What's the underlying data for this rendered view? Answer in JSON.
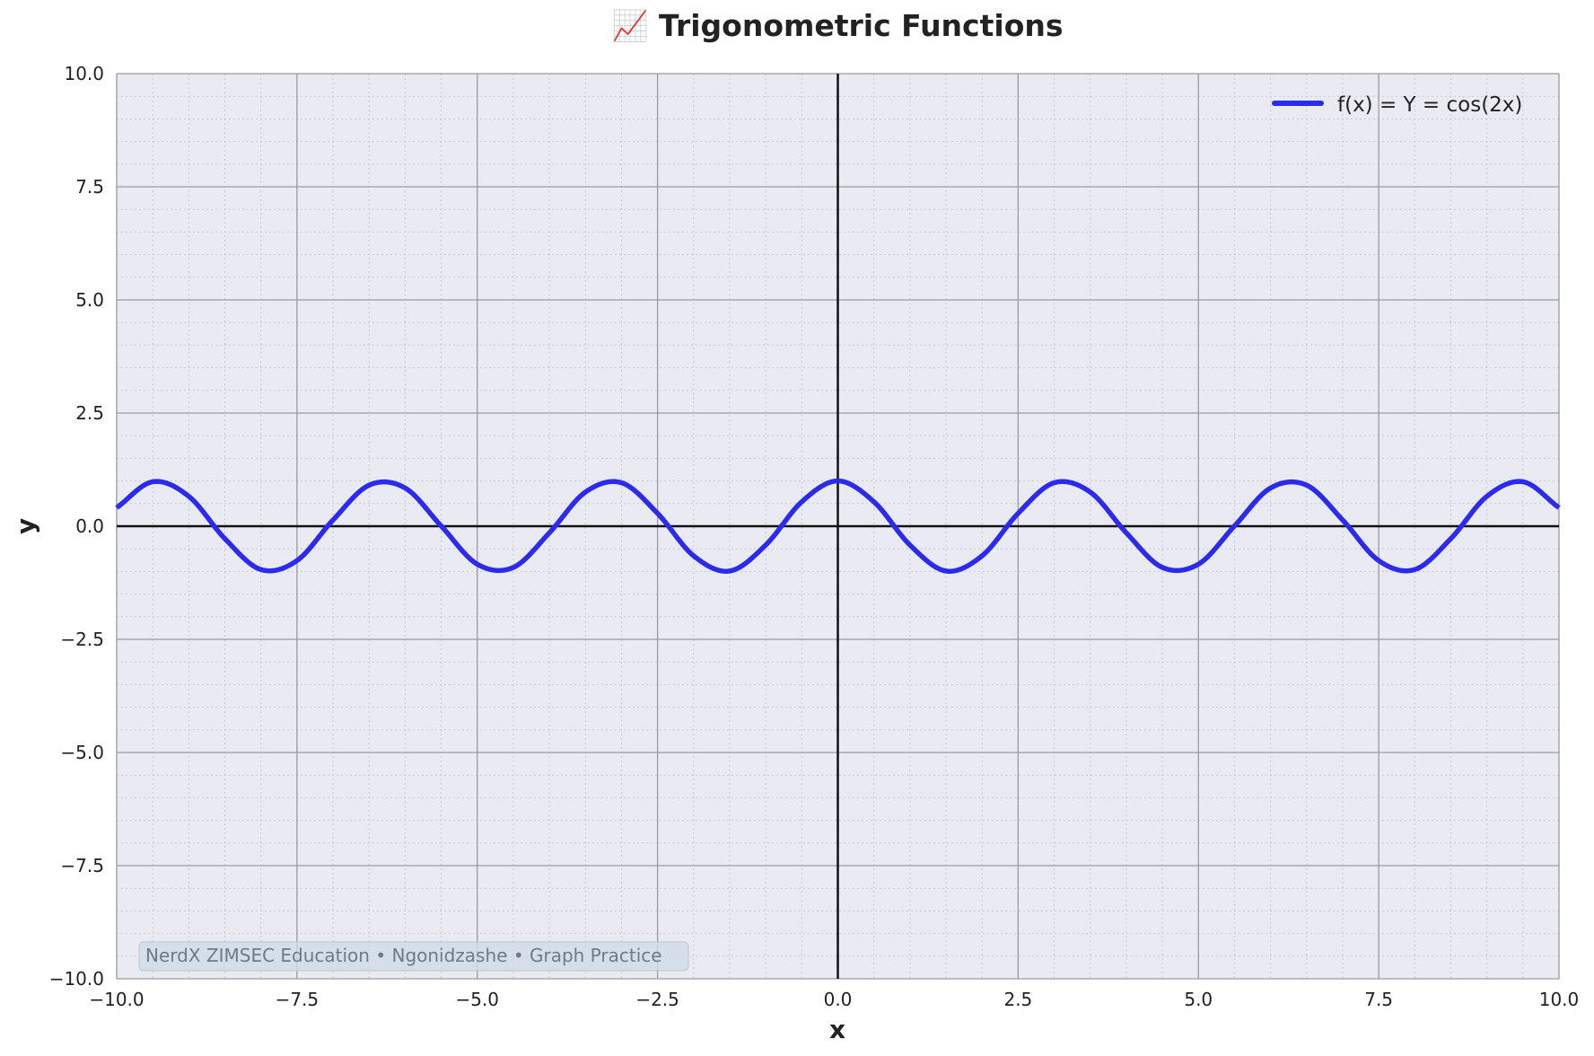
{
  "colors": {
    "plot_background": "#eaeaf2",
    "major_grid": "#9a9aa0",
    "minor_grid": "#c8c8d0",
    "zero_axis": "#111111",
    "series": "#2b2bf0",
    "watermark_fill": "#cfdbe6"
  },
  "chart_data": {
    "type": "line",
    "title": "📈 Trigonometric Functions",
    "xlabel": "x",
    "ylabel": "y",
    "xlim": [
      -10,
      10
    ],
    "ylim": [
      -10,
      10
    ],
    "x_ticks": [
      -10,
      -7.5,
      -5,
      -2.5,
      0,
      2.5,
      5,
      7.5,
      10
    ],
    "y_ticks": [
      -10,
      -7.5,
      -5,
      -2.5,
      0,
      2.5,
      5,
      7.5,
      10
    ],
    "x_tick_labels": [
      "−10.0",
      "−7.5",
      "−5.0",
      "−2.5",
      "0.0",
      "2.5",
      "5.0",
      "7.5",
      "10.0"
    ],
    "y_tick_labels": [
      "−10.0",
      "−7.5",
      "−5.0",
      "−2.5",
      "0.0",
      "2.5",
      "5.0",
      "7.5",
      "10.0"
    ],
    "grid": true,
    "minor_grid": true,
    "legend_position": "top-right",
    "series": [
      {
        "name": "f(x) = Y = cos(2x)",
        "function": "cos(2x)",
        "x": [
          -10,
          -9.5,
          -9,
          -8.5,
          -8,
          -7.5,
          -7,
          -6.5,
          -6,
          -5.5,
          -5,
          -4.5,
          -4,
          -3.5,
          -3,
          -2.5,
          -2,
          -1.5,
          -1,
          -0.5,
          0,
          0.5,
          1,
          1.5,
          2,
          2.5,
          3,
          3.5,
          4,
          4.5,
          5,
          5.5,
          6,
          6.5,
          7,
          7.5,
          8,
          8.5,
          9,
          9.5,
          10
        ],
        "y": [
          0.408,
          0.982,
          0.66,
          -0.275,
          -0.958,
          -0.76,
          0.137,
          0.907,
          0.844,
          0.004,
          -0.839,
          -0.911,
          -0.146,
          0.754,
          0.96,
          0.284,
          -0.654,
          -0.99,
          -0.416,
          0.54,
          1.0,
          0.54,
          -0.416,
          -0.99,
          -0.654,
          0.284,
          0.96,
          0.754,
          -0.146,
          -0.911,
          -0.839,
          0.004,
          0.844,
          0.907,
          0.137,
          -0.76,
          -0.958,
          -0.275,
          0.66,
          0.982,
          0.408
        ]
      }
    ]
  },
  "watermark": "NerdX ZIMSEC Education • Ngonidzashe • Graph Practice"
}
